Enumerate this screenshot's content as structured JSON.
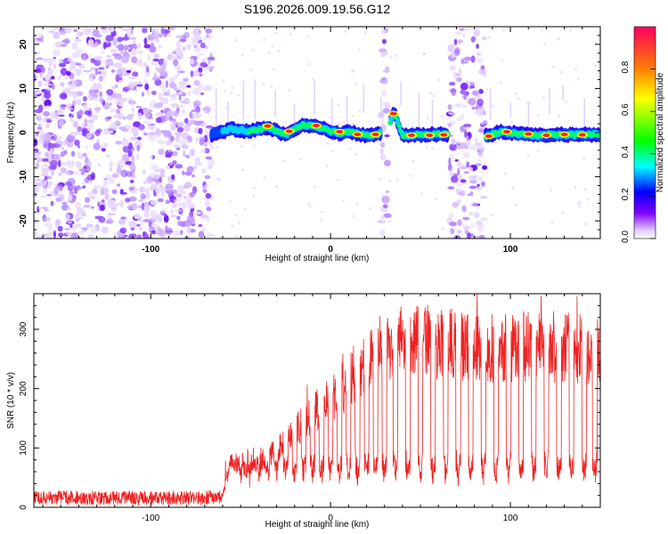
{
  "title": "S196.2026.009.19.56.G12",
  "chart_data": [
    {
      "type": "heatmap",
      "title": "S196.2026.009.19.56.G12",
      "xlabel": "Height of straight line (km)",
      "ylabel": "Frequency (Hz)",
      "xlim": [
        -165,
        150
      ],
      "ylim": [
        -24,
        24
      ],
      "x_ticks": [
        -100,
        0,
        100
      ],
      "y_ticks": [
        -20,
        -10,
        0,
        10,
        20
      ],
      "colorbar": {
        "label": "Normalized spectral amplitude",
        "range": [
          0.0,
          1.0
        ],
        "ticks": [
          "0.0",
          "0.2",
          "0.4",
          "0.6",
          "0.8"
        ],
        "tick_values": [
          0.0,
          0.2,
          0.4,
          0.6,
          0.8
        ]
      },
      "noise_regions_km": [
        [
          -165,
          -66
        ],
        [
          28,
          32
        ],
        [
          66,
          86
        ]
      ],
      "ridge": {
        "x": [
          -66,
          -55,
          -45,
          -35,
          -25,
          -15,
          -8,
          0,
          5,
          10,
          15,
          20,
          25,
          28,
          32,
          34,
          36,
          40,
          50,
          60,
          66,
          86,
          95,
          105,
          115,
          125,
          135,
          150
        ],
        "y": [
          -0.5,
          0.8,
          0.3,
          1.2,
          -0.5,
          1.8,
          1.3,
          0.4,
          -0.2,
          0.2,
          -0.3,
          -0.6,
          -0.4,
          0,
          0,
          4,
          4,
          -0.7,
          -0.5,
          -0.4,
          -0.4,
          -0.8,
          0.2,
          -0.3,
          -0.6,
          -0.4,
          -0.5,
          -0.4
        ]
      },
      "peaks": [
        {
          "x": -35,
          "y": 1.5
        },
        {
          "x": -23,
          "y": 0.3
        },
        {
          "x": -8,
          "y": 1.6
        },
        {
          "x": 5,
          "y": 0.2
        },
        {
          "x": 15,
          "y": -0.4
        },
        {
          "x": 25,
          "y": -0.4
        },
        {
          "x": 35,
          "y": 4.3
        },
        {
          "x": 45,
          "y": -0.6
        },
        {
          "x": 55,
          "y": -0.6
        },
        {
          "x": 63,
          "y": -0.5
        },
        {
          "x": 88,
          "y": -0.8
        },
        {
          "x": 98,
          "y": 0.2
        },
        {
          "x": 110,
          "y": -0.3
        },
        {
          "x": 120,
          "y": -0.6
        },
        {
          "x": 130,
          "y": -0.4
        },
        {
          "x": 140,
          "y": -0.5
        }
      ]
    },
    {
      "type": "line",
      "xlabel": "Height of straight line (km)",
      "ylabel": "SNR (10 * v/v)",
      "xlim": [
        -165,
        150
      ],
      "ylim": [
        0,
        360
      ],
      "x_ticks": [
        -100,
        0,
        100
      ],
      "y_ticks": [
        0,
        100,
        200,
        300
      ],
      "series": [
        {
          "name": "SNR",
          "color": "#ee2222",
          "envelope_x": [
            -165,
            -60,
            -55,
            -45,
            -35,
            -25,
            -15,
            -5,
            5,
            15,
            25,
            35,
            50,
            70,
            90,
            110,
            130,
            150
          ],
          "envelope_y": [
            15,
            20,
            80,
            60,
            85,
            110,
            145,
            170,
            195,
            230,
            260,
            275,
            280,
            275,
            270,
            270,
            270,
            265
          ],
          "dropout_x": [
            -50,
            -45,
            -40,
            -35,
            -30,
            -25,
            -20,
            -15,
            -10,
            -5,
            0,
            5,
            10,
            15,
            20,
            25,
            30,
            36,
            43,
            50,
            57,
            64,
            71,
            78,
            85,
            92,
            99,
            106,
            113,
            120,
            127,
            134,
            141,
            147
          ],
          "dropout_floor": 55
        }
      ]
    }
  ]
}
